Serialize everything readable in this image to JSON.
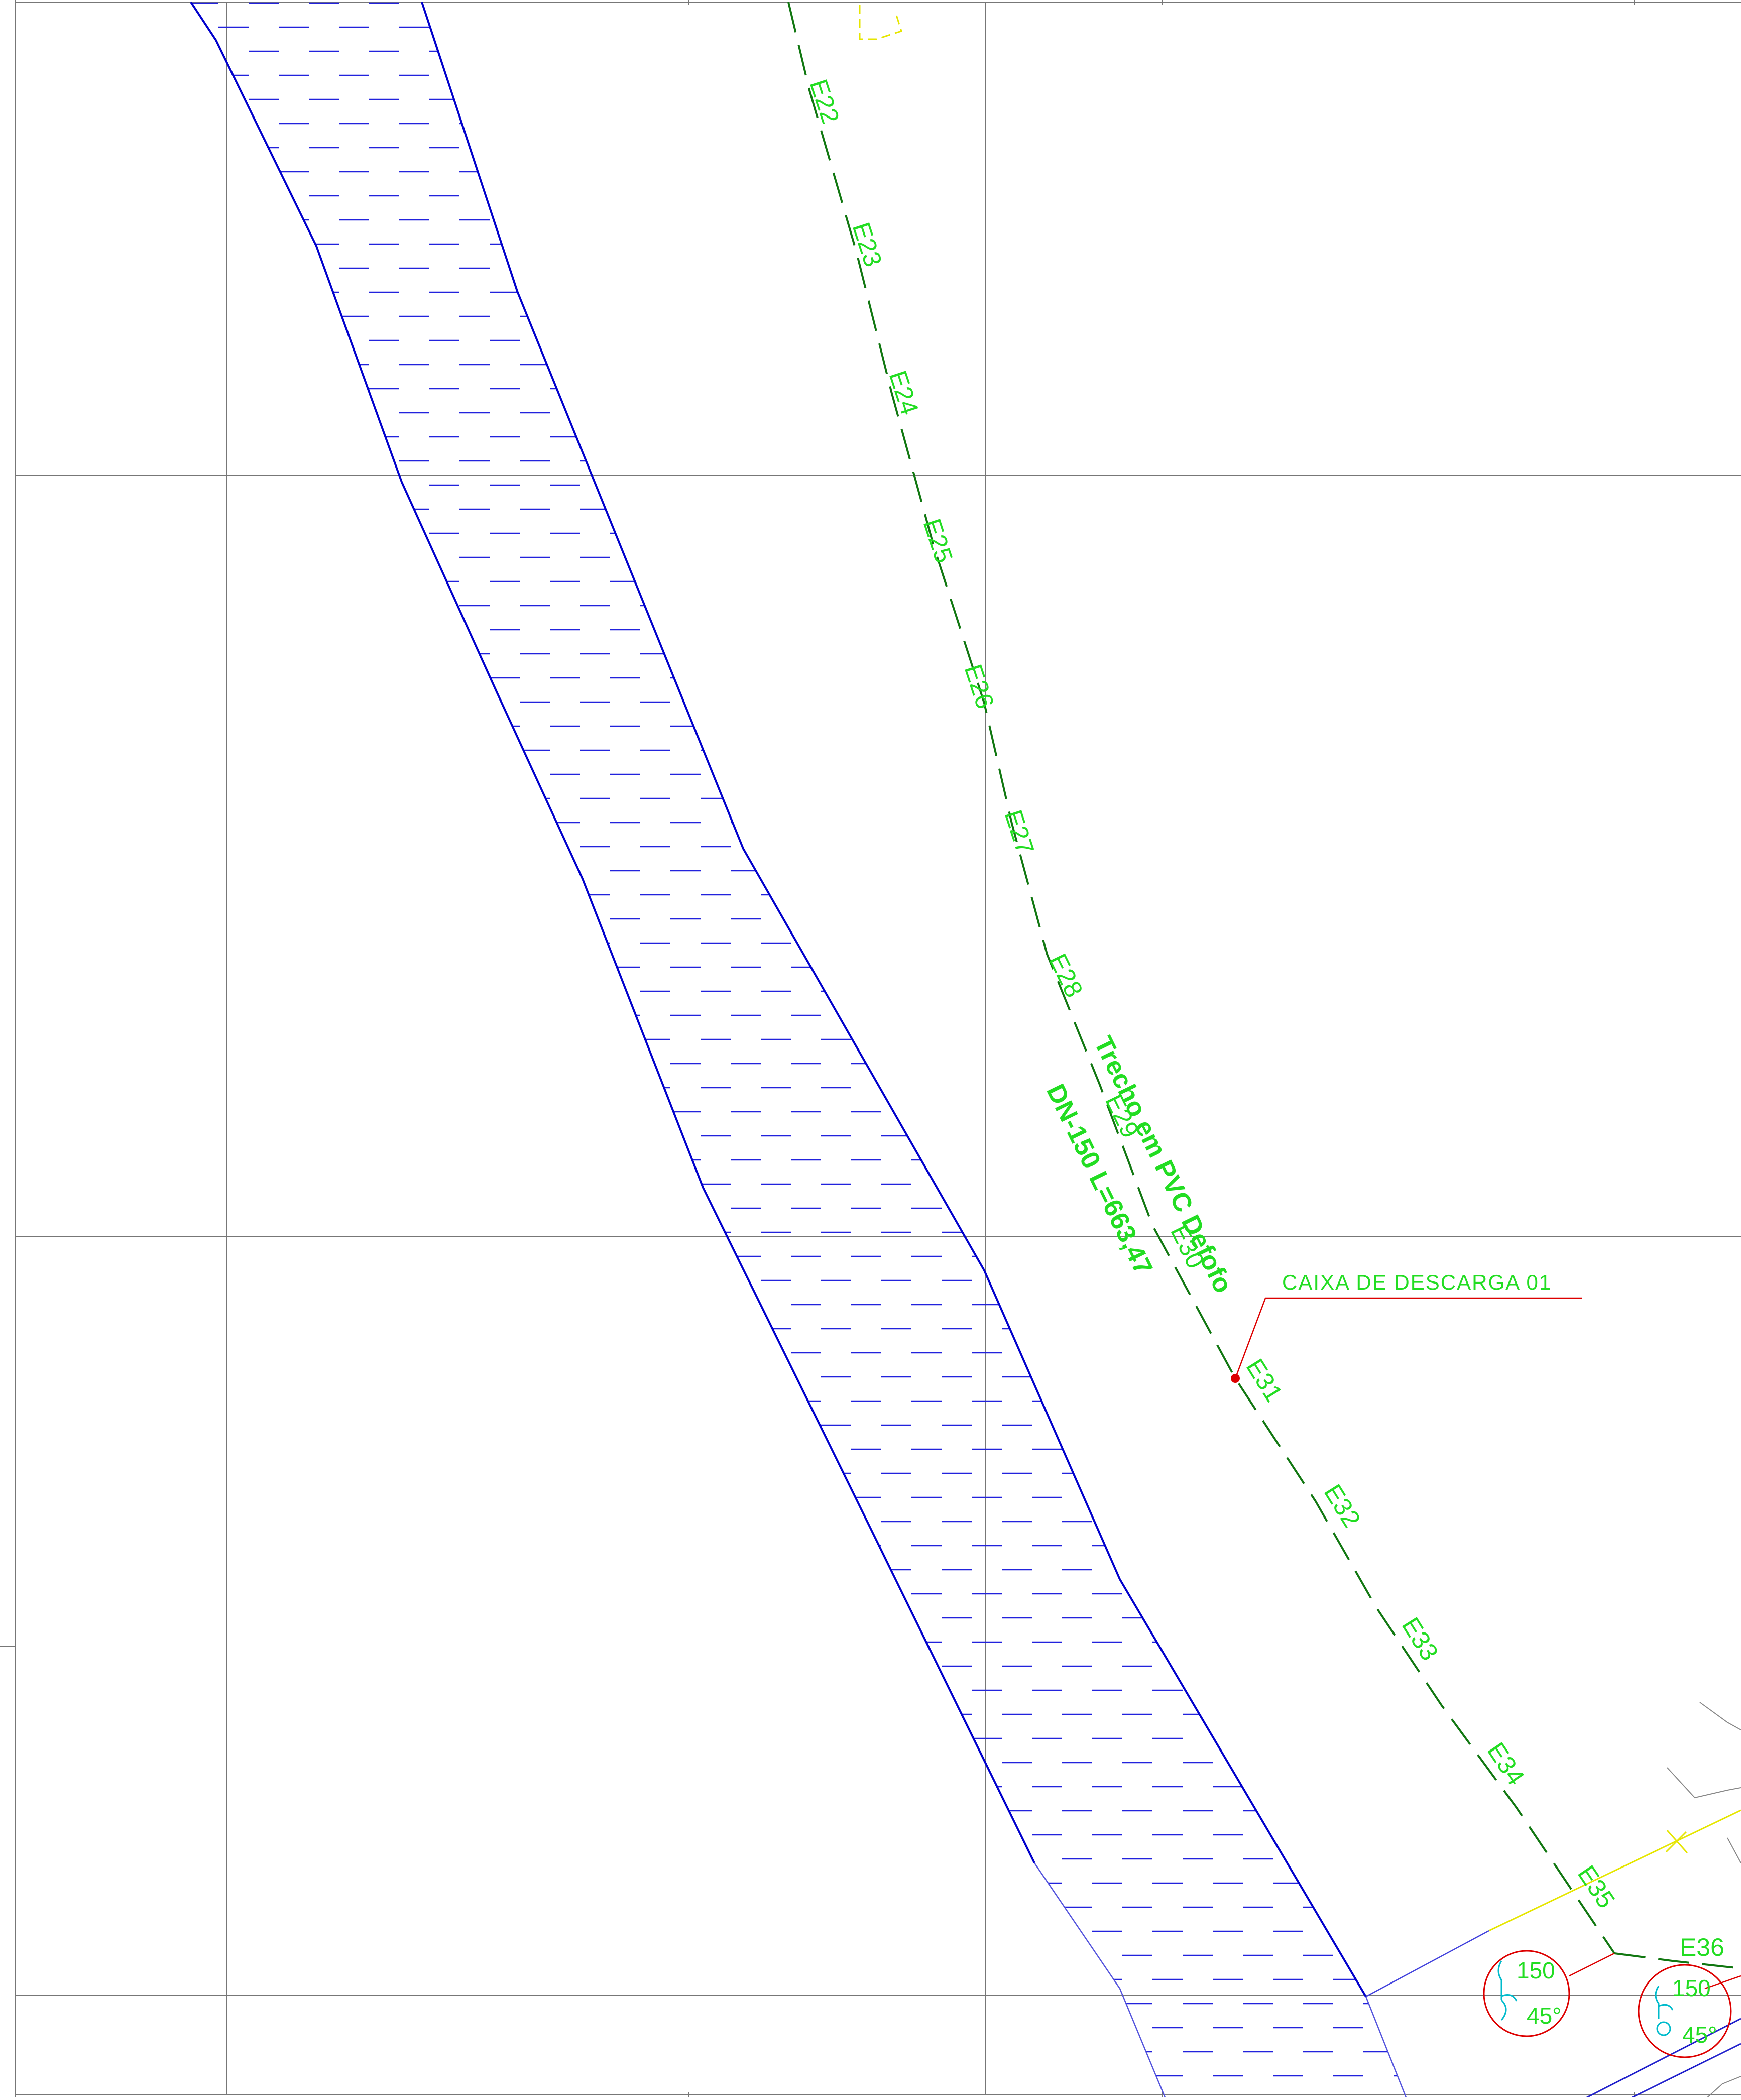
{
  "drawing": {
    "background": "#ffffff",
    "colors": {
      "grid": "#777777",
      "channel": "#0000cc",
      "pipeline": "#117711",
      "text": "#22dd22",
      "callout": "#dd0000",
      "fitting_symbol": "#00bbcc",
      "yellow_line": "#e6e600"
    }
  },
  "pipeline": {
    "label_line1": "Trecho em PVC Defofo",
    "label_line2": "DN-150   L=663,47",
    "stations": [
      "E22",
      "E23",
      "E24",
      "E25",
      "E26",
      "E27",
      "E28",
      "E29",
      "E30",
      "E31",
      "E32",
      "E33",
      "E34",
      "E35",
      "E36"
    ]
  },
  "callout": {
    "label": "CAIXA DE DESCARGA 01"
  },
  "fittings": [
    {
      "diameter": "150",
      "angle": "45°",
      "icon": "bend-fitting-icon"
    },
    {
      "diameter": "150",
      "angle": "45°",
      "icon": "bend-fitting-icon"
    }
  ]
}
